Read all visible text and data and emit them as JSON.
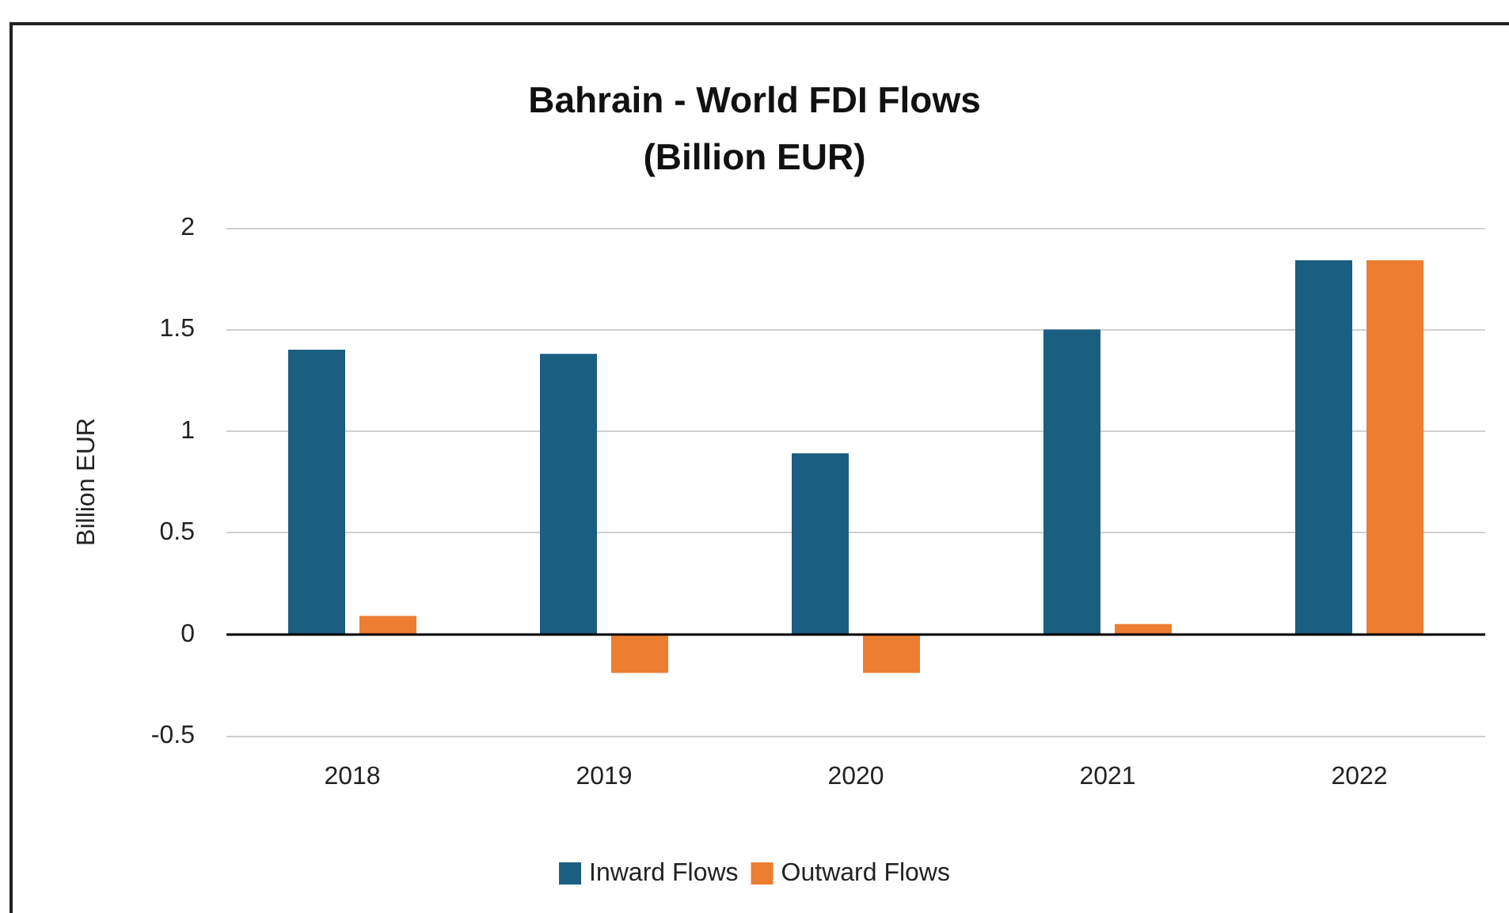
{
  "chart_data": {
    "type": "bar",
    "title": "Bahrain - World FDI Flows\n(Billion EUR)",
    "ylabel": "Billion EUR",
    "categories": [
      "2018",
      "2019",
      "2020",
      "2021",
      "2022"
    ],
    "series": [
      {
        "name": "Inward Flows",
        "color": "#1a5e80",
        "values": [
          1.4,
          1.38,
          0.89,
          1.5,
          1.84
        ]
      },
      {
        "name": "Outward Flows",
        "color": "#ed7d31",
        "values": [
          0.09,
          -0.19,
          -0.19,
          0.05,
          1.84
        ]
      }
    ],
    "ylim": [
      -0.5,
      2
    ],
    "yticks": [
      -0.5,
      0,
      0.5,
      1,
      1.5,
      2
    ],
    "grid": "y",
    "legend": "bottom"
  }
}
